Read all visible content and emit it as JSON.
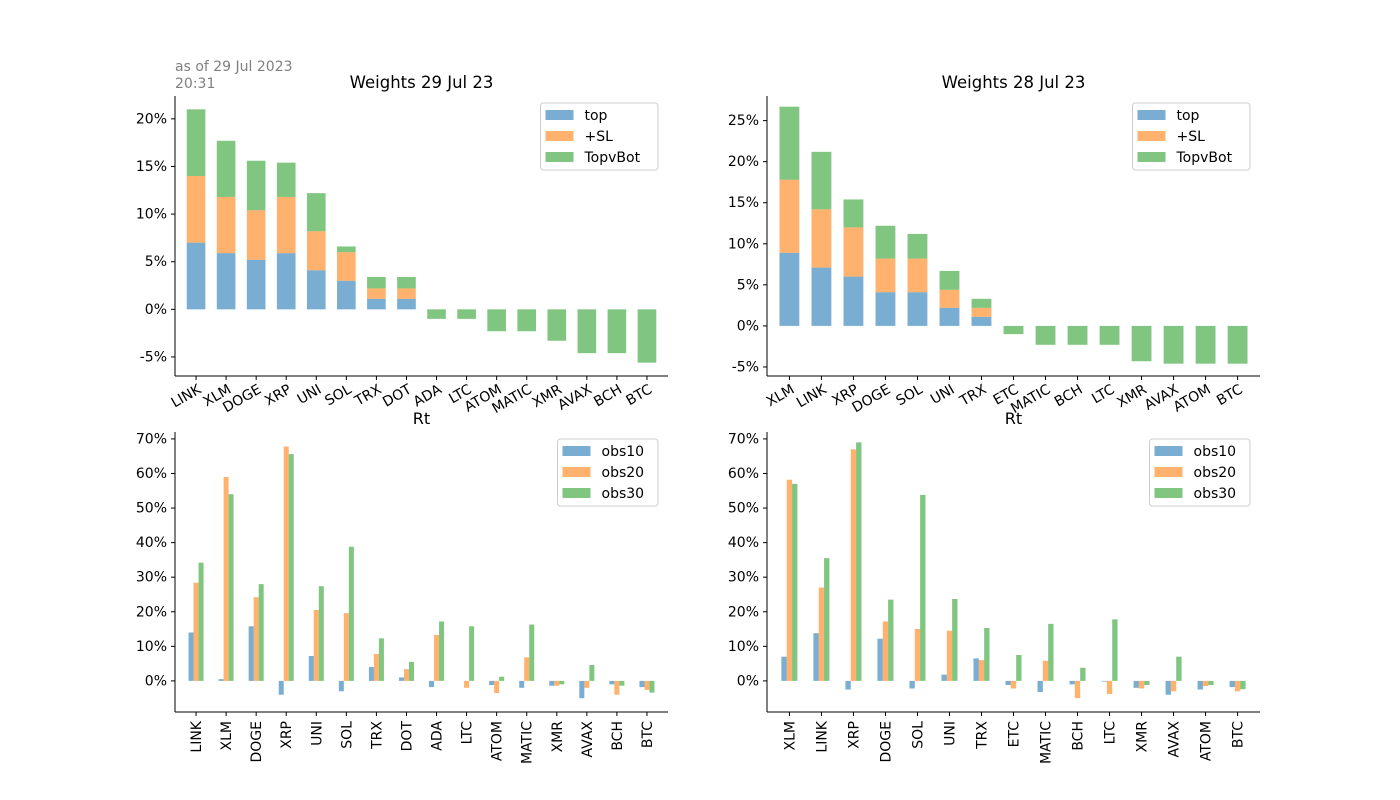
{
  "asof_text": "as of 29 Jul 2023\n20:31",
  "colors": {
    "blue": "#1f77b4",
    "orange": "#ff7f0e",
    "green": "#2ca02c",
    "bar_alpha": 0.6
  },
  "chart_data": [
    {
      "type": "bar",
      "stacked": true,
      "title": "Weights 29 Jul 23",
      "xlabel": "Rt",
      "ylabel": "",
      "categories": [
        "LINK",
        "XLM",
        "DOGE",
        "XRP",
        "UNI",
        "SOL",
        "TRX",
        "DOT",
        "ADA",
        "LTC",
        "ATOM",
        "MATIC",
        "XMR",
        "AVAX",
        "BCH",
        "BTC"
      ],
      "series": [
        {
          "name": "top",
          "values": [
            7.0,
            5.9,
            5.2,
            5.9,
            4.1,
            3.0,
            1.1,
            1.1,
            0,
            0,
            0,
            0,
            0,
            0,
            0,
            0
          ]
        },
        {
          "name": "+SL",
          "values": [
            7.0,
            5.9,
            5.2,
            5.9,
            4.1,
            3.0,
            1.1,
            1.1,
            0,
            0,
            0,
            0,
            0,
            0,
            0,
            0
          ]
        },
        {
          "name": "TopvBot",
          "values": [
            7.0,
            5.9,
            5.2,
            3.6,
            4.0,
            0.6,
            1.2,
            1.2,
            -1.0,
            -1.0,
            -2.3,
            -2.3,
            -3.3,
            -4.6,
            -4.6,
            -5.6
          ]
        }
      ],
      "ylim": [
        -7.0,
        22.4
      ],
      "yticks": [
        -5,
        0,
        5,
        10,
        15,
        20
      ],
      "ytick_format": "percent",
      "xtick_rotation": 30,
      "legend": "top-right",
      "grid": false
    },
    {
      "type": "bar",
      "stacked": true,
      "title": "Weights 28 Jul 23",
      "xlabel": "Rt",
      "ylabel": "",
      "categories": [
        "XLM",
        "LINK",
        "XRP",
        "DOGE",
        "SOL",
        "UNI",
        "TRX",
        "ETC",
        "MATIC",
        "BCH",
        "LTC",
        "XMR",
        "AVAX",
        "ATOM",
        "BTC"
      ],
      "series": [
        {
          "name": "top",
          "values": [
            8.9,
            7.1,
            6.0,
            4.1,
            4.1,
            2.2,
            1.1,
            0,
            0,
            0,
            0,
            0,
            0,
            0,
            0
          ]
        },
        {
          "name": "+SL",
          "values": [
            8.9,
            7.1,
            6.0,
            4.1,
            4.1,
            2.2,
            1.1,
            0,
            0,
            0,
            0,
            0,
            0,
            0,
            0
          ]
        },
        {
          "name": "TopvBot",
          "values": [
            8.9,
            7.0,
            3.4,
            4.0,
            3.0,
            2.3,
            1.1,
            -1.0,
            -2.3,
            -2.3,
            -2.3,
            -4.3,
            -4.6,
            -4.6,
            -4.6
          ]
        }
      ],
      "ylim": [
        -6.1,
        28.0
      ],
      "yticks": [
        -5,
        0,
        5,
        10,
        15,
        20,
        25
      ],
      "ytick_format": "percent",
      "xtick_rotation": 30,
      "legend": "top-right",
      "grid": false
    },
    {
      "type": "bar",
      "stacked": false,
      "title": "",
      "xlabel": "",
      "ylabel": "",
      "categories": [
        "LINK",
        "XLM",
        "DOGE",
        "XRP",
        "UNI",
        "SOL",
        "TRX",
        "DOT",
        "ADA",
        "LTC",
        "ATOM",
        "MATIC",
        "XMR",
        "AVAX",
        "BCH",
        "BTC"
      ],
      "series": [
        {
          "name": "obs10",
          "values": [
            14.0,
            0.5,
            15.8,
            -4.0,
            7.2,
            -3.0,
            4.0,
            1.0,
            -1.8,
            0,
            -1.2,
            -2.0,
            -1.4,
            -5.0,
            -1.0,
            -1.8
          ]
        },
        {
          "name": "obs20",
          "values": [
            28.4,
            59.0,
            24.2,
            67.8,
            20.5,
            19.6,
            7.8,
            3.4,
            13.3,
            -2.0,
            -3.5,
            6.8,
            -1.4,
            -2.0,
            -4.0,
            -2.6
          ]
        },
        {
          "name": "obs30",
          "values": [
            34.2,
            54.0,
            28.0,
            65.6,
            27.4,
            38.8,
            12.3,
            5.5,
            17.2,
            15.8,
            1.2,
            16.3,
            -1.0,
            4.6,
            -1.4,
            -3.4
          ]
        }
      ],
      "ylim": [
        -9.0,
        72.0
      ],
      "yticks": [
        0,
        10,
        20,
        30,
        40,
        50,
        60,
        70
      ],
      "ytick_format": "percent",
      "xtick_rotation": 90,
      "legend": "top-right",
      "grid": false
    },
    {
      "type": "bar",
      "stacked": false,
      "title": "",
      "xlabel": "",
      "ylabel": "",
      "categories": [
        "XLM",
        "LINK",
        "XRP",
        "DOGE",
        "SOL",
        "UNI",
        "TRX",
        "ETC",
        "MATIC",
        "BCH",
        "LTC",
        "XMR",
        "AVAX",
        "ATOM",
        "BTC"
      ],
      "series": [
        {
          "name": "obs10",
          "values": [
            7.0,
            13.8,
            -2.5,
            12.2,
            -2.2,
            1.8,
            6.5,
            -1.2,
            -3.2,
            -1.0,
            -0.2,
            -2.0,
            -4.0,
            -2.5,
            -1.8
          ]
        },
        {
          "name": "obs20",
          "values": [
            58.2,
            27.0,
            67.0,
            17.2,
            15.0,
            14.5,
            6.0,
            -2.2,
            5.8,
            -5.0,
            -3.8,
            -2.2,
            -3.0,
            -1.5,
            -3.0
          ]
        },
        {
          "name": "obs30",
          "values": [
            57.0,
            35.5,
            69.0,
            23.5,
            53.8,
            23.7,
            15.3,
            7.5,
            16.5,
            3.8,
            17.8,
            -1.2,
            7.0,
            -1.2,
            -2.4
          ]
        }
      ],
      "ylim": [
        -9.0,
        72.0
      ],
      "yticks": [
        0,
        10,
        20,
        30,
        40,
        50,
        60,
        70
      ],
      "ytick_format": "percent",
      "xtick_rotation": 90,
      "legend": "top-right",
      "grid": false
    }
  ]
}
